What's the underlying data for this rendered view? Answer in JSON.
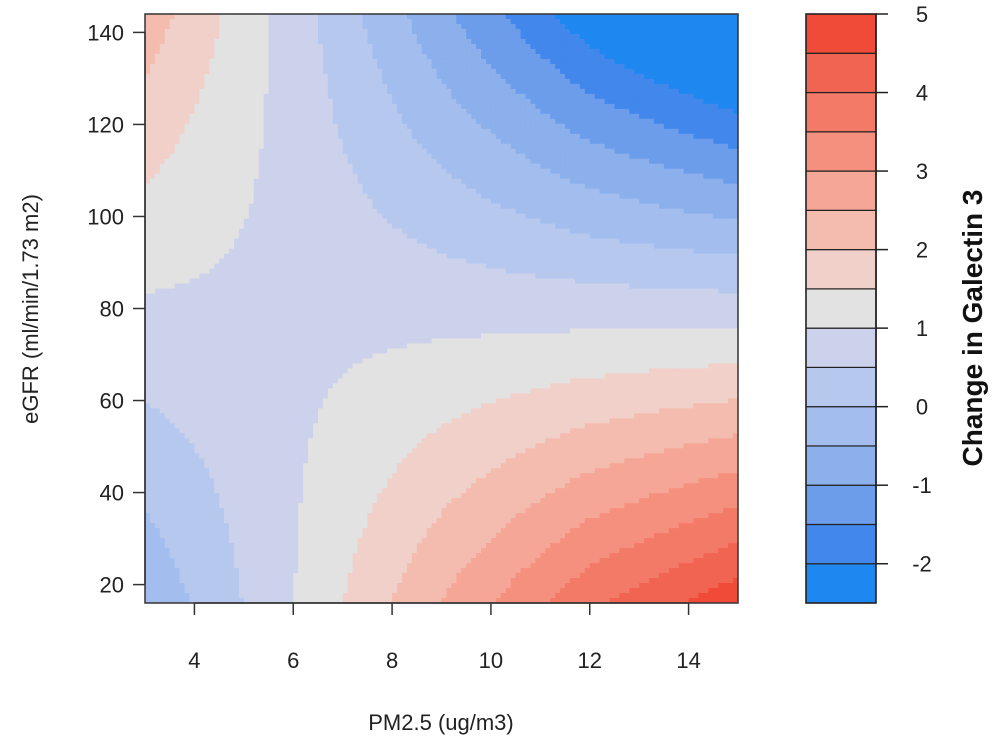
{
  "chart_data": {
    "type": "heatmap",
    "subtype": "filled-contour",
    "xlabel": "PM2.5 (ug/m3)",
    "ylabel": "eGFR (ml/min/1.73 m2)",
    "xlim": [
      3,
      15
    ],
    "ylim": [
      16,
      144
    ],
    "x_ticks": [
      4,
      6,
      8,
      10,
      12,
      14
    ],
    "y_ticks": [
      20,
      40,
      60,
      80,
      100,
      120,
      140
    ],
    "surface_samples": {
      "x": [
        3,
        6,
        9,
        12,
        15
      ],
      "y": [
        16,
        48,
        80,
        112,
        144
      ],
      "z": [
        [
          -0.43,
          0.99,
          2.52,
          3.89,
          4.85
        ],
        [
          0.25,
          0.93,
          1.67,
          2.33,
          2.79
        ],
        [
          0.93,
          0.87,
          0.82,
          0.77,
          0.73
        ],
        [
          1.61,
          0.82,
          -0.04,
          -0.79,
          -1.33
        ],
        [
          2.29,
          0.76,
          -0.89,
          -2.35,
          -3.39
        ]
      ]
    },
    "colorbar": {
      "title": "Change in Galectin 3",
      "ticks": [
        -2,
        -1,
        0,
        1,
        2,
        3,
        4,
        5
      ],
      "levels": [
        -2.5,
        -2.0,
        -1.5,
        -1.0,
        -0.5,
        0.0,
        0.5,
        1.0,
        1.5,
        2.0,
        2.5,
        3.0,
        3.5,
        4.0,
        4.5,
        5.0
      ],
      "colors": [
        "#1E88F0",
        "#4287EC",
        "#6C9DEB",
        "#8BB0EC",
        "#A3BEEE",
        "#B7C8EE",
        "#CCD2EC",
        "#E2E2E2",
        "#F0D0C8",
        "#F4BCAE",
        "#F5A696",
        "#F5907F",
        "#F47A68",
        "#F26452",
        "#F04A38"
      ]
    }
  }
}
